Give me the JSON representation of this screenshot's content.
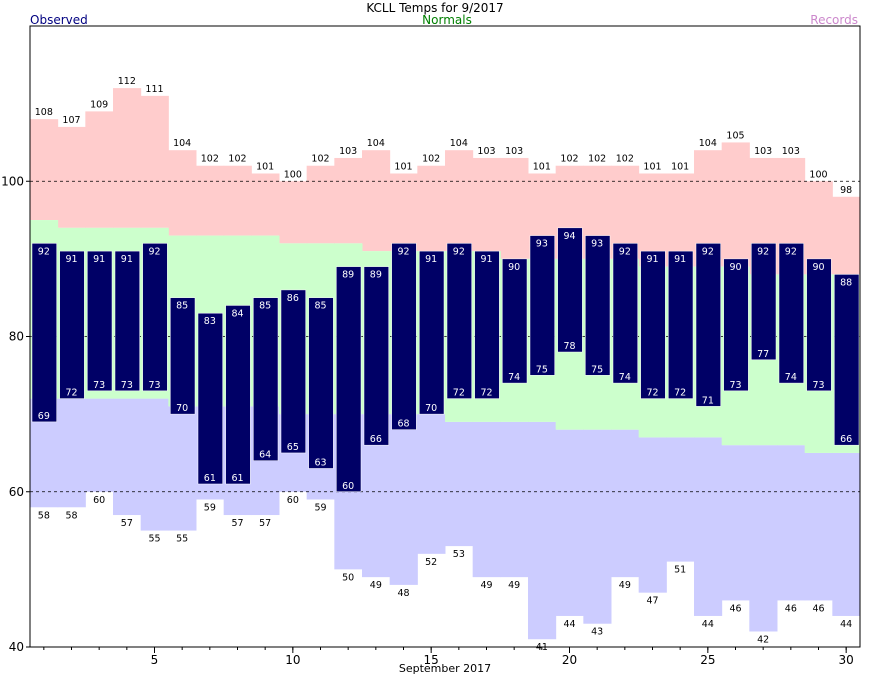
{
  "title": "KCLL Temps for 9/2017",
  "legend": {
    "observed": "Observed",
    "normals": "Normals",
    "records": "Records"
  },
  "colors": {
    "observed": "#000066",
    "normals_fill": "#ccffcc",
    "records_high_fill": "#ffcccc",
    "records_low_fill": "#ccccff",
    "normals_text": "#008000",
    "records_text": "#cc88cc",
    "observed_text": "#000080"
  },
  "chart_data": {
    "type": "bar",
    "title": "KCLL Temps for 9/2017",
    "xlabel": "September 2017",
    "ylabel": "",
    "xlim": [
      1,
      30
    ],
    "ylim": [
      40,
      120
    ],
    "x_ticks": [
      5,
      10,
      15,
      20,
      25,
      30
    ],
    "y_ticks": [
      40,
      60,
      80,
      100
    ],
    "gridlines": [
      60,
      80,
      100
    ],
    "days": [
      1,
      2,
      3,
      4,
      5,
      6,
      7,
      8,
      9,
      10,
      11,
      12,
      13,
      14,
      15,
      16,
      17,
      18,
      19,
      20,
      21,
      22,
      23,
      24,
      25,
      26,
      27,
      28,
      29,
      30
    ],
    "series": [
      {
        "name": "Observed",
        "kind": "high",
        "values": [
          92,
          91,
          91,
          91,
          92,
          85,
          83,
          84,
          85,
          86,
          85,
          89,
          89,
          92,
          91,
          92,
          91,
          90,
          93,
          94,
          93,
          92,
          91,
          91,
          92,
          90,
          92,
          92,
          90,
          88
        ]
      },
      {
        "name": "Observed",
        "kind": "low",
        "values": [
          69,
          72,
          73,
          73,
          73,
          70,
          61,
          61,
          64,
          65,
          63,
          60,
          66,
          68,
          70,
          72,
          72,
          74,
          75,
          78,
          75,
          74,
          72,
          72,
          71,
          73,
          77,
          74,
          73,
          66
        ]
      },
      {
        "name": "Normals",
        "kind": "high",
        "values": [
          95,
          94,
          94,
          94,
          94,
          93,
          93,
          93,
          93,
          92,
          92,
          92,
          91,
          91,
          91,
          91,
          91,
          90,
          90,
          90,
          90,
          90,
          89,
          89,
          89,
          89,
          88,
          88,
          88,
          88
        ]
      },
      {
        "name": "Normals",
        "kind": "low",
        "values": [
          72,
          72,
          72,
          72,
          72,
          71,
          71,
          71,
          71,
          70,
          70,
          70,
          70,
          70,
          70,
          69,
          69,
          69,
          69,
          68,
          68,
          68,
          67,
          67,
          67,
          66,
          66,
          66,
          65,
          65
        ]
      },
      {
        "name": "Records",
        "kind": "high",
        "values": [
          108,
          107,
          109,
          112,
          111,
          104,
          102,
          102,
          101,
          100,
          102,
          103,
          104,
          101,
          102,
          104,
          103,
          103,
          101,
          102,
          102,
          102,
          101,
          101,
          104,
          105,
          103,
          103,
          100,
          98
        ]
      },
      {
        "name": "Records",
        "kind": "low",
        "values": [
          58,
          58,
          60,
          57,
          55,
          55,
          59,
          57,
          57,
          60,
          59,
          50,
          49,
          48,
          52,
          53,
          49,
          49,
          41,
          44,
          43,
          49,
          47,
          51,
          44,
          46,
          42,
          46,
          46,
          44
        ]
      }
    ]
  }
}
